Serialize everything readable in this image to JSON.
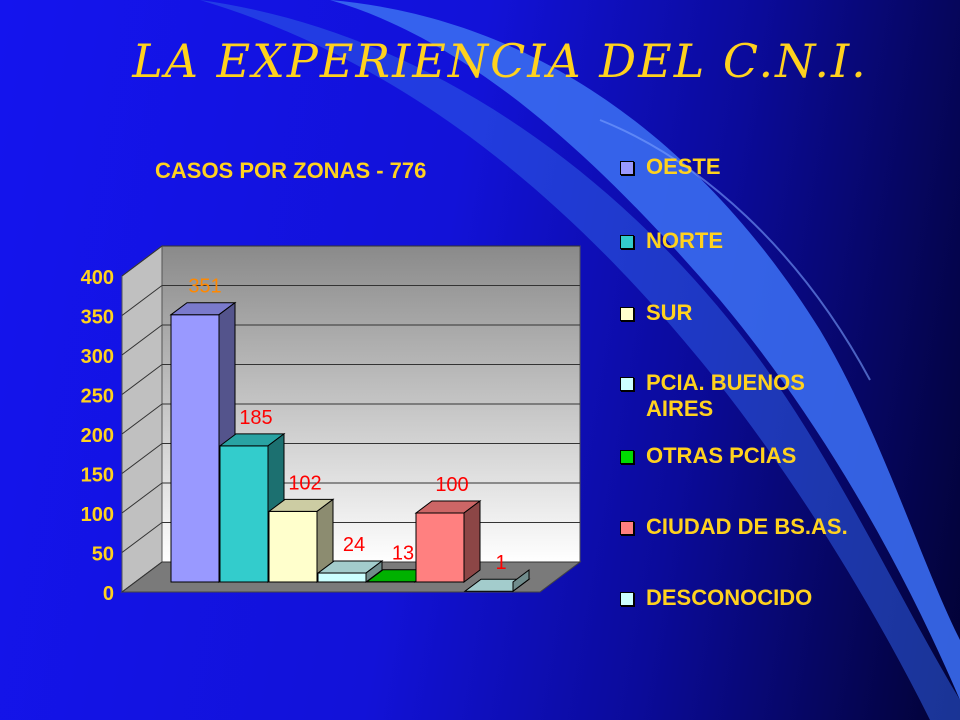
{
  "slide": {
    "title": "LA EXPERIENCIA DEL C.N.I."
  },
  "chart_data": {
    "type": "bar",
    "title": "CASOS POR ZONAS - 776",
    "categories": [
      "OESTE",
      "NORTE",
      "SUR",
      "PCIA. BUENOS AIRES",
      "OTRAS PCIAS",
      "CIUDAD DE BS.AS.",
      "DESCONOCIDO"
    ],
    "values": [
      351,
      185,
      102,
      24,
      13,
      100,
      1
    ],
    "data_labels": [
      "351",
      "185",
      "102",
      "24",
      "13",
      "100",
      "1"
    ],
    "colors": [
      "#9999ff",
      "#33cccc",
      "#ffffcc",
      "#ccffff",
      "#00dd00",
      "#ff8080",
      "#ccffff"
    ],
    "ylim": [
      0,
      400
    ],
    "yticks": [
      "0",
      "50",
      "100",
      "150",
      "200",
      "250",
      "300",
      "350",
      "400"
    ],
    "grid": true,
    "style": "3d",
    "legend_position": "right",
    "label_colors": {
      "first": "#ff8800",
      "others": "#ff0000"
    }
  }
}
